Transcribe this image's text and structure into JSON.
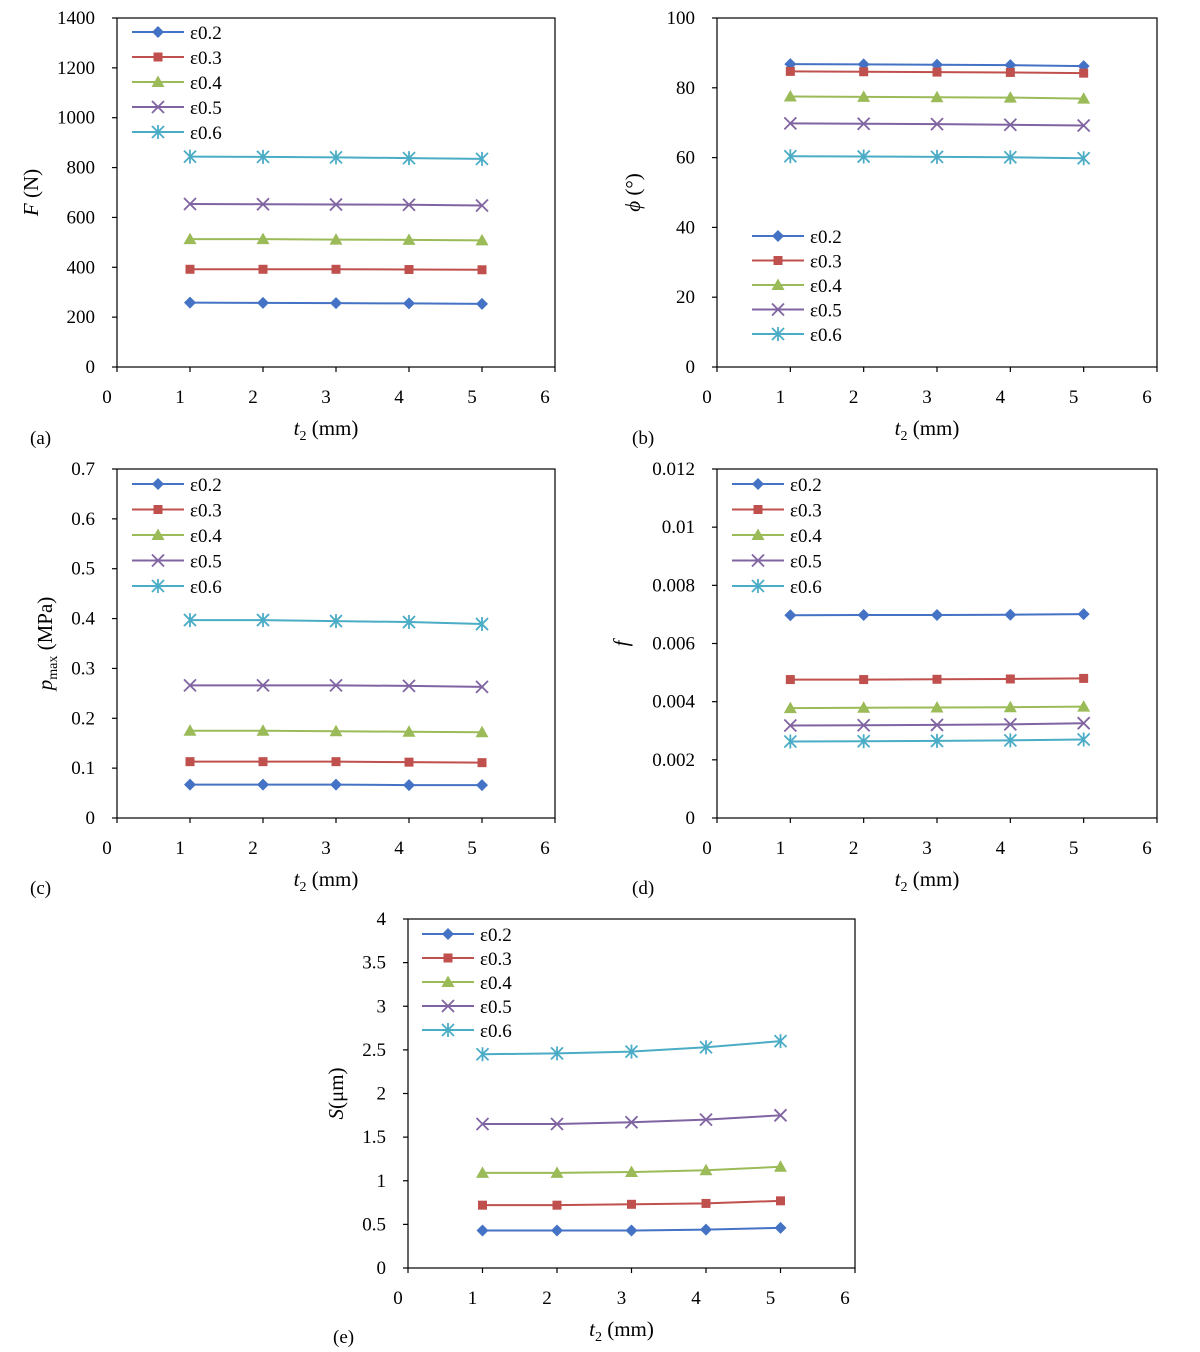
{
  "figure": {
    "series_colors": [
      "#4472c4",
      "#c0504d",
      "#9bbb59",
      "#8064a2",
      "#4bacc6"
    ],
    "series_markers": [
      "diamond",
      "square",
      "triangle",
      "x",
      "asterisk"
    ]
  },
  "chart_data": [
    {
      "type": "line",
      "panel": "(a)",
      "xlabel_main": "t",
      "xlabel_sub": "2",
      "xlabel_unit": " (mm)",
      "ylabel_main": "F",
      "ylabel_sub": "",
      "ylabel_unit": " (N)",
      "xlim": [
        0,
        6
      ],
      "ylim": [
        0,
        1400
      ],
      "xticks": [
        "0",
        "1",
        "2",
        "3",
        "4",
        "5",
        "6"
      ],
      "yticks": [
        "0",
        "200",
        "400",
        "600",
        "800",
        "1000",
        "1200",
        "1400"
      ],
      "legend_position": "top-left",
      "x": [
        1,
        2,
        3,
        4,
        5
      ],
      "series": [
        {
          "name": "ε0.2",
          "values": [
            258,
            257,
            256,
            255,
            253
          ]
        },
        {
          "name": "ε0.3",
          "values": [
            392,
            392,
            392,
            391,
            390
          ]
        },
        {
          "name": "ε0.4",
          "values": [
            513,
            513,
            511,
            510,
            508
          ]
        },
        {
          "name": "ε0.5",
          "values": [
            654,
            653,
            652,
            651,
            648
          ]
        },
        {
          "name": "ε0.6",
          "values": [
            844,
            843,
            841,
            838,
            835
          ]
        }
      ]
    },
    {
      "type": "line",
      "panel": "(b)",
      "xlabel_main": "t",
      "xlabel_sub": "2",
      "xlabel_unit": " (mm)",
      "ylabel_main": "ϕ",
      "ylabel_sub": "",
      "ylabel_unit": " (°)",
      "xlim": [
        0,
        6
      ],
      "ylim": [
        0,
        100
      ],
      "xticks": [
        "0",
        "1",
        "2",
        "3",
        "4",
        "5",
        "6"
      ],
      "yticks": [
        "0",
        "20",
        "40",
        "60",
        "80",
        "100"
      ],
      "legend_position": "lower-left",
      "x": [
        1,
        2,
        3,
        4,
        5
      ],
      "series": [
        {
          "name": "ε0.2",
          "values": [
            86.8,
            86.7,
            86.6,
            86.5,
            86.2
          ]
        },
        {
          "name": "ε0.3",
          "values": [
            84.7,
            84.6,
            84.5,
            84.4,
            84.2
          ]
        },
        {
          "name": "ε0.4",
          "values": [
            77.5,
            77.4,
            77.3,
            77.2,
            76.9
          ]
        },
        {
          "name": "ε0.5",
          "values": [
            69.8,
            69.7,
            69.6,
            69.4,
            69.2
          ]
        },
        {
          "name": "ε0.6",
          "values": [
            60.4,
            60.3,
            60.2,
            60.1,
            59.8
          ]
        }
      ]
    },
    {
      "type": "line",
      "panel": "(c)",
      "xlabel_main": "t",
      "xlabel_sub": "2",
      "xlabel_unit": " (mm)",
      "ylabel_main": "p",
      "ylabel_sub": "max",
      "ylabel_unit": " (MPa)",
      "xlim": [
        0,
        6
      ],
      "ylim": [
        0,
        0.7
      ],
      "xticks": [
        "0",
        "1",
        "2",
        "3",
        "4",
        "5",
        "6"
      ],
      "yticks": [
        "0",
        "0.1",
        "0.2",
        "0.3",
        "0.4",
        "0.5",
        "0.6",
        "0.7"
      ],
      "legend_position": "top-left",
      "x": [
        1,
        2,
        3,
        4,
        5
      ],
      "series": [
        {
          "name": "ε0.2",
          "values": [
            0.067,
            0.067,
            0.067,
            0.066,
            0.066
          ]
        },
        {
          "name": "ε0.3",
          "values": [
            0.113,
            0.113,
            0.113,
            0.112,
            0.111
          ]
        },
        {
          "name": "ε0.4",
          "values": [
            0.175,
            0.175,
            0.174,
            0.173,
            0.172
          ]
        },
        {
          "name": "ε0.5",
          "values": [
            0.266,
            0.266,
            0.266,
            0.265,
            0.263
          ]
        },
        {
          "name": "ε0.6",
          "values": [
            0.397,
            0.397,
            0.395,
            0.393,
            0.389
          ]
        }
      ]
    },
    {
      "type": "line",
      "panel": "(d)",
      "xlabel_main": "t",
      "xlabel_sub": "2",
      "xlabel_unit": " (mm)",
      "ylabel_main": "f",
      "ylabel_sub": "",
      "ylabel_unit": "",
      "xlim": [
        0,
        6
      ],
      "ylim": [
        0,
        0.012
      ],
      "xticks": [
        "0",
        "1",
        "2",
        "3",
        "4",
        "5",
        "6"
      ],
      "yticks": [
        "0",
        "0.002",
        "0.004",
        "0.006",
        "0.008",
        "0.01",
        "0.012"
      ],
      "legend_position": "top-left",
      "x": [
        1,
        2,
        3,
        4,
        5
      ],
      "series": [
        {
          "name": "ε0.2",
          "values": [
            0.00697,
            0.00698,
            0.00698,
            0.00699,
            0.00701
          ]
        },
        {
          "name": "ε0.3",
          "values": [
            0.00476,
            0.00476,
            0.00477,
            0.00478,
            0.0048
          ]
        },
        {
          "name": "ε0.4",
          "values": [
            0.00378,
            0.00379,
            0.0038,
            0.00381,
            0.00383
          ]
        },
        {
          "name": "ε0.5",
          "values": [
            0.00318,
            0.00319,
            0.0032,
            0.00322,
            0.00326
          ]
        },
        {
          "name": "ε0.6",
          "values": [
            0.00263,
            0.00264,
            0.00265,
            0.00267,
            0.0027
          ]
        }
      ]
    },
    {
      "type": "line",
      "panel": "(e)",
      "xlabel_main": "t",
      "xlabel_sub": "2",
      "xlabel_unit": " (mm)",
      "ylabel_main": "S",
      "ylabel_sub": "",
      "ylabel_unit": "(μm)",
      "xlim": [
        0,
        6
      ],
      "ylim": [
        0,
        4
      ],
      "xticks": [
        "0",
        "1",
        "2",
        "3",
        "4",
        "5",
        "6"
      ],
      "yticks": [
        "0",
        "0.5",
        "1",
        "1.5",
        "2",
        "2.5",
        "3",
        "3.5",
        "4"
      ],
      "legend_position": "top-left",
      "x": [
        1,
        2,
        3,
        4,
        5
      ],
      "series": [
        {
          "name": "ε0.2",
          "values": [
            0.43,
            0.43,
            0.43,
            0.44,
            0.46
          ]
        },
        {
          "name": "ε0.3",
          "values": [
            0.72,
            0.72,
            0.73,
            0.74,
            0.77
          ]
        },
        {
          "name": "ε0.4",
          "values": [
            1.09,
            1.09,
            1.1,
            1.12,
            1.16
          ]
        },
        {
          "name": "ε0.5",
          "values": [
            1.65,
            1.65,
            1.67,
            1.7,
            1.75
          ]
        },
        {
          "name": "ε0.6",
          "values": [
            2.45,
            2.46,
            2.48,
            2.53,
            2.6
          ]
        }
      ]
    }
  ]
}
